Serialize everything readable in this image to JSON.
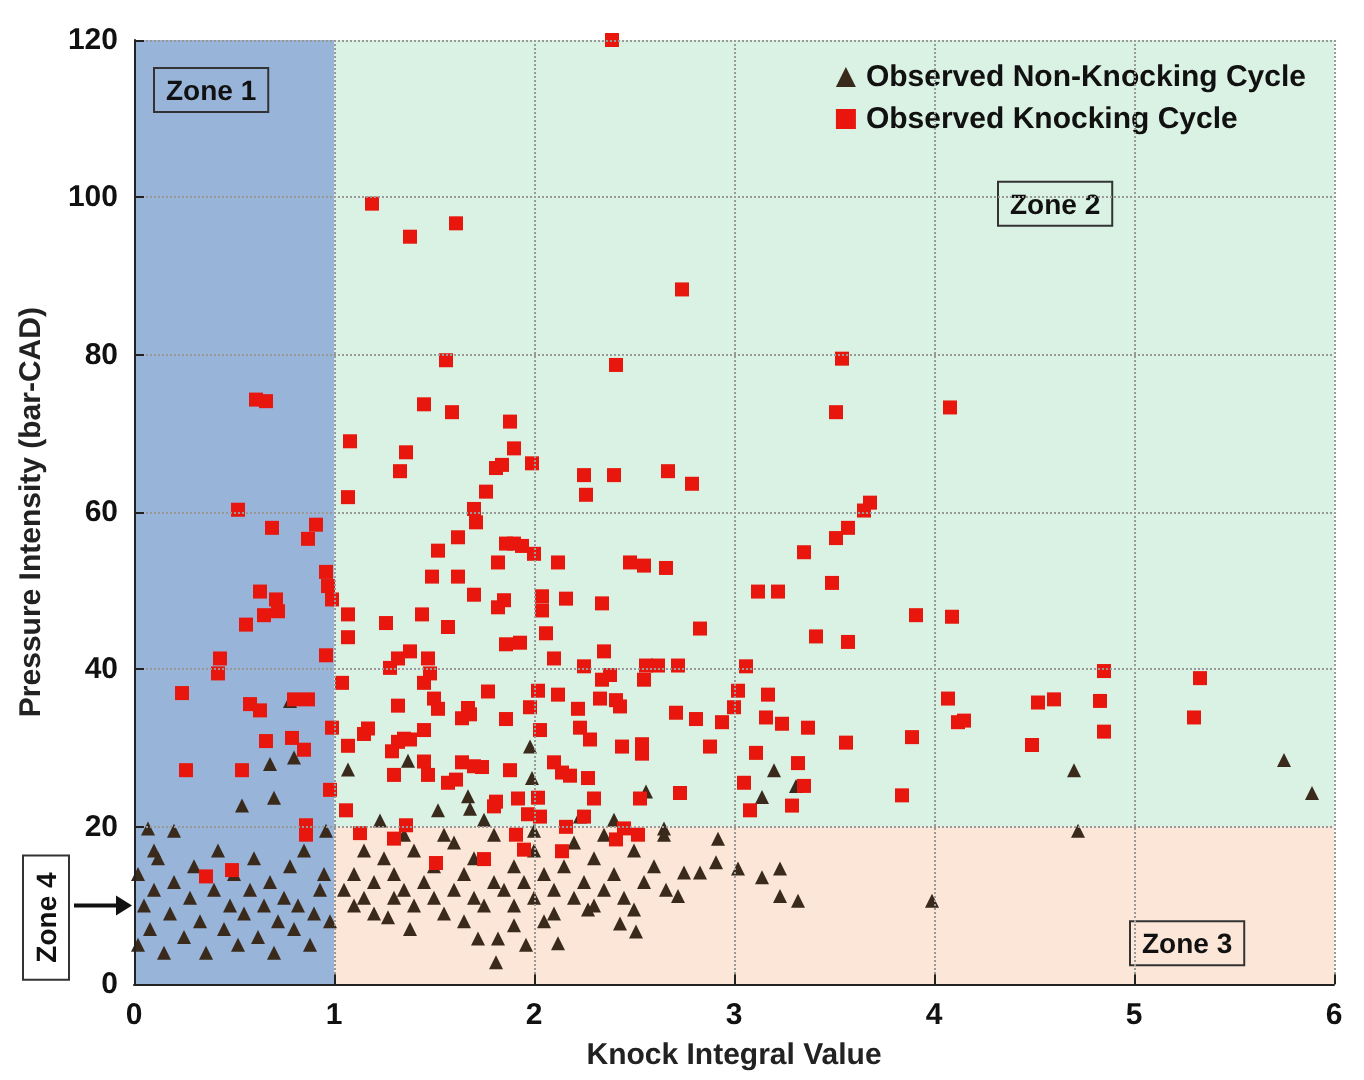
{
  "chart_data": {
    "type": "scatter",
    "xlabel": "Knock Integral Value",
    "ylabel": "Pressure Intensity (bar-CAD)",
    "xlim": [
      0,
      6
    ],
    "xticks": [
      0,
      1,
      2,
      3,
      4,
      5,
      6
    ],
    "ylim": [
      0,
      120
    ],
    "yticks": [
      0,
      20,
      40,
      60,
      80,
      100,
      120
    ],
    "grid": true,
    "legend": "top right",
    "bands": [
      {
        "axis": "y",
        "from": 20,
        "to": 120,
        "color": "#daf2e4",
        "label": "Zone 2"
      },
      {
        "axis": "y",
        "from": 0,
        "to": 20,
        "color": "#fbe6d8",
        "label": "Zone 3"
      },
      {
        "axis": "x",
        "from": 0,
        "to": 1,
        "color": "#98b4d9",
        "label": "Zone 1"
      }
    ],
    "annotations": [
      {
        "text": "Zone 4",
        "x": 0,
        "y": 10
      }
    ],
    "series": [
      {
        "name": "Observed Non-Knocking Cycle",
        "color": "#3a2a1c",
        "marker": "triangle",
        "x": [
          3.2,
          3.14,
          3.31,
          4.7,
          5.75,
          5.89,
          4.72,
          1.98,
          1.37,
          1.07,
          1.67,
          1.68,
          1.52,
          1.75,
          1.23,
          1.99,
          2.23,
          2.4,
          2.56,
          2.65,
          0.68,
          0.8,
          0.7,
          0.54,
          0.78,
          2.92,
          3.02,
          3.14,
          3.23,
          3.23,
          3.32,
          3.99,
          2.75,
          2.83,
          2.91,
          2.66,
          2.72,
          2.43,
          2.51,
          1.96,
          1.82,
          1.72,
          1.81,
          2.12,
          1.38,
          1.27,
          2.27,
          1.05,
          1.1,
          1.1,
          1.15,
          1.2,
          1.2,
          1.25,
          1.3,
          1.3,
          1.35,
          1.4,
          1.4,
          1.45,
          1.5,
          1.5,
          1.55,
          1.6,
          1.6,
          1.65,
          1.7,
          1.7,
          1.75,
          1.8,
          1.8,
          1.85,
          1.9,
          1.9,
          1.95,
          2.0,
          2.0,
          2.05,
          2.1,
          2.1,
          2.15,
          2.2,
          2.2,
          2.25,
          2.3,
          2.3,
          2.35,
          2.4,
          2.45,
          2.5,
          2.55,
          2.6,
          2.65,
          1.15,
          1.35,
          1.55,
          2.0,
          2.35,
          2.5,
          1.65,
          1.9,
          2.05,
          0.02,
          0.02,
          0.05,
          0.08,
          0.1,
          0.12,
          0.15,
          0.18,
          0.2,
          0.2,
          0.25,
          0.28,
          0.3,
          0.33,
          0.36,
          0.4,
          0.42,
          0.45,
          0.48,
          0.5,
          0.52,
          0.55,
          0.58,
          0.6,
          0.62,
          0.65,
          0.68,
          0.7,
          0.72,
          0.75,
          0.78,
          0.8,
          0.82,
          0.85,
          0.88,
          0.9,
          0.93,
          0.95,
          0.98,
          0.1,
          0.07,
          0.96
        ],
        "values": [
          27.2,
          23.8,
          25.2,
          27.2,
          28.5,
          24.3,
          19.5,
          30.2,
          28.4,
          27.3,
          23.9,
          22.3,
          22.1,
          20.9,
          20.8,
          26.2,
          21.3,
          20.9,
          24.5,
          19.8,
          28,
          28.8,
          23.7,
          22.7,
          36,
          18.5,
          14.7,
          13.6,
          14.7,
          11.2,
          10.6,
          10.6,
          14.2,
          14.2,
          15.5,
          12,
          11.2,
          7.7,
          6.7,
          5,
          5.8,
          5.8,
          2.8,
          5.2,
          7,
          8.5,
          9.5,
          12,
          10,
          14,
          11,
          13,
          9,
          16,
          11,
          14,
          12,
          10,
          17,
          13,
          11,
          15,
          9,
          12,
          18,
          14,
          11,
          16,
          10,
          13,
          19,
          12,
          15,
          10,
          13,
          11,
          17,
          14,
          12,
          9,
          15,
          11,
          18,
          13,
          10,
          16,
          12,
          14,
          11,
          17,
          13,
          15,
          19,
          17,
          19,
          19,
          19.5,
          19,
          9.5,
          8,
          7.5,
          8,
          14,
          5,
          10,
          7,
          12,
          16,
          4,
          9,
          13,
          19.5,
          6,
          11,
          15,
          8,
          4,
          12,
          17,
          7,
          10,
          14,
          5,
          9,
          12,
          16,
          6,
          10,
          13,
          4,
          8,
          11,
          15,
          7,
          10,
          17,
          5,
          9,
          12,
          14,
          8,
          17,
          19.8,
          19.5
        ]
      },
      {
        "name": "Observed Knocking Cycle",
        "color": "#e8160c",
        "marker": "square",
        "x": [
          2.39,
          1.19,
          1.38,
          1.61,
          2.74,
          1.56,
          2.41,
          0.61,
          0.66,
          1.45,
          1.59,
          1.88,
          1.08,
          1.36,
          1.9,
          1.33,
          1.81,
          1.84,
          1.99,
          2.25,
          2.4,
          2.67,
          2.79,
          1.76,
          1.07,
          2.26,
          0.52,
          1.7,
          1.71,
          0.69,
          0.91,
          3.54,
          3.51,
          4.08,
          3.68,
          3.65,
          3.57,
          0.87,
          0.96,
          0.97,
          0.99,
          0.63,
          0.71,
          0.72,
          0.65,
          0.56,
          0.96,
          0.43,
          0.42,
          0.24,
          0.58,
          0.63,
          0.8,
          0.87,
          0.99,
          0.66,
          0.79,
          0.85,
          0.26,
          0.54,
          0.98,
          0.86,
          0.36,
          0.49,
          0.86,
          1.62,
          1.86,
          1.9,
          1.94,
          2.0,
          1.82,
          1.52,
          2.12,
          2.48,
          2.55,
          2.66,
          1.49,
          1.62,
          1.7,
          1.85,
          1.82,
          2.04,
          2.16,
          2.04,
          2.34,
          1.07,
          1.44,
          1.26,
          1.57,
          1.07,
          2.06,
          1.86,
          1.93,
          2.83,
          2.35,
          1.38,
          1.32,
          1.47,
          2.1,
          1.28,
          1.48,
          2.25,
          2.56,
          2.62,
          2.72,
          3.06,
          2.38,
          2.34,
          2.55,
          1.45,
          1.04,
          1.77,
          2.02,
          2.12,
          1.5,
          2.33,
          2.41,
          2.43,
          3.02,
          3.0,
          1.32,
          1.52,
          1.67,
          1.98,
          2.22,
          1.86,
          1.64,
          1.68,
          2.71,
          2.81,
          2.94,
          2.03,
          2.23,
          1.45,
          1.17,
          1.15,
          1.35,
          1.38,
          1.32,
          1.07,
          2.28,
          2.44,
          2.54,
          2.54,
          2.88,
          3.11,
          1.29,
          1.45,
          1.64,
          1.7,
          1.74,
          2.1,
          1.88,
          1.3,
          1.47,
          1.57,
          1.61,
          2.14,
          2.18,
          2.27,
          3.05,
          2.73,
          2.53,
          2.3,
          1.92,
          2.02,
          1.81,
          1.8,
          1.06,
          2.03,
          1.97,
          3.08,
          2.25,
          1.13,
          1.3,
          1.36,
          1.51,
          1.75,
          1.91,
          1.95,
          2.14,
          2.16,
          2.41,
          2.45,
          2.52,
          3.51,
          3.35,
          3.12,
          3.22,
          3.49,
          3.91,
          4.09,
          3.41,
          3.57,
          4.85,
          5.33,
          3.17,
          4.07,
          4.52,
          4.6,
          4.83,
          3.16,
          3.24,
          3.37,
          4.12,
          4.15,
          4.85,
          5.3,
          3.56,
          3.89,
          4.49,
          3.32,
          3.35,
          3.29,
          3.84
        ],
        "values": [
          120,
          99.2,
          95,
          96.7,
          88.3,
          79.3,
          78.7,
          74.3,
          74.1,
          73.7,
          72.7,
          71.5,
          69,
          67.6,
          68.1,
          65.2,
          65.6,
          66,
          66.2,
          64.7,
          64.7,
          65.2,
          63.6,
          62.6,
          61.9,
          62.2,
          60.3,
          60.4,
          58.7,
          58,
          58.4,
          79.5,
          72.7,
          73.3,
          61.2,
          60.2,
          58,
          56.6,
          52.4,
          50.6,
          48.9,
          49.9,
          48.9,
          47.4,
          46.9,
          45.7,
          41.8,
          41.4,
          39.5,
          37,
          35.6,
          34.8,
          36.2,
          36.2,
          32.6,
          30.9,
          31.3,
          29.8,
          27.2,
          27.2,
          24.7,
          20.2,
          13.7,
          14.5,
          19,
          56.8,
          56,
          56,
          55.7,
          54.7,
          53.6,
          55.1,
          53.6,
          53.6,
          53.2,
          52.9,
          51.8,
          51.8,
          49.5,
          48.8,
          47.9,
          49.3,
          49,
          47.5,
          48.4,
          47,
          47,
          45.9,
          45.4,
          44.1,
          44.6,
          43.2,
          43.4,
          45.2,
          42.3,
          42.3,
          41.4,
          41.4,
          41.4,
          40.2,
          39.5,
          40.4,
          40.5,
          40.5,
          40.5,
          40.4,
          39.3,
          38.7,
          38.7,
          38.3,
          38.3,
          37.2,
          37.3,
          36.8,
          36.3,
          36.3,
          36.1,
          35.3,
          37.3,
          35.2,
          35.4,
          35,
          35.1,
          35.2,
          35,
          33.7,
          33.8,
          34.3,
          34.5,
          33.7,
          33.3,
          32.3,
          32.6,
          32.3,
          32.5,
          31.8,
          31.2,
          31.1,
          30.8,
          30.3,
          31.1,
          30.2,
          30.5,
          29.3,
          30.2,
          29.4,
          29.6,
          28.3,
          28.2,
          27.7,
          27.6,
          28.2,
          27.2,
          26.6,
          26.6,
          25.6,
          26,
          26.9,
          26.5,
          26.2,
          25.6,
          24.3,
          23.6,
          23.6,
          23.6,
          23.7,
          23.2,
          22.6,
          22.1,
          21.3,
          21.6,
          22.1,
          21.3,
          19.2,
          18.5,
          20.2,
          15.4,
          15.9,
          19,
          17.1,
          16.9,
          20,
          18.4,
          19.8,
          19,
          56.7,
          54.9,
          49.9,
          49.9,
          51,
          46.9,
          46.7,
          44.2,
          43.5,
          39.8,
          38.9,
          36.8,
          36.3,
          35.8,
          36.2,
          36,
          33.9,
          33.1,
          32.6,
          33.3,
          33.5,
          32.1,
          33.9,
          30.7,
          31.4,
          30.4,
          28.1,
          25.2,
          22.7,
          24
        ]
      }
    ]
  }
}
